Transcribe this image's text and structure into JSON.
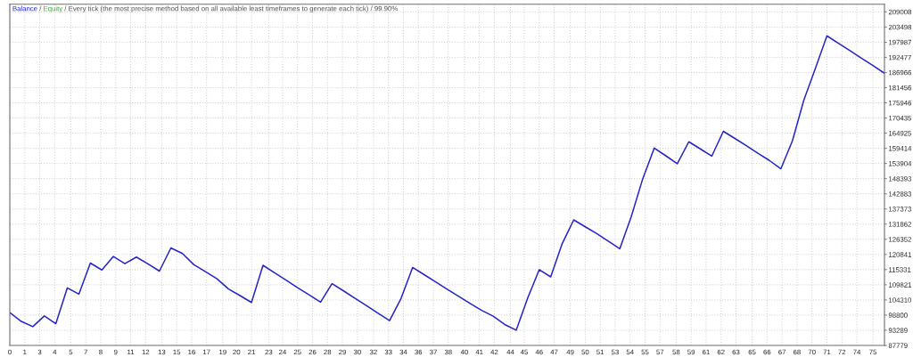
{
  "chart_data": {
    "type": "line",
    "title": "Every tick (the most precise method based on all available least timeframes to generate each tick) / 99.90%",
    "annotations": [
      "/",
      "/"
    ],
    "x": [
      0,
      1,
      2,
      3,
      4,
      5,
      6,
      7,
      8,
      9,
      10,
      11,
      12,
      13,
      14,
      15,
      16,
      17,
      18,
      19,
      20,
      21,
      22,
      23,
      24,
      25,
      26,
      27,
      28,
      29,
      30,
      31,
      32,
      33,
      34,
      35,
      36,
      37,
      38,
      39,
      40,
      41,
      42,
      43,
      44,
      45,
      46,
      47,
      48,
      49,
      50,
      51,
      52,
      53,
      54,
      55,
      56,
      57,
      58,
      59,
      60,
      61,
      62,
      63,
      64,
      65,
      66,
      67,
      68,
      69,
      70,
      71,
      72,
      73,
      74,
      75,
      76
    ],
    "series": [
      {
        "name": "Balance",
        "color": "#2424c8",
        "values": [
          99700,
          96500,
          94600,
          98500,
          95700,
          108700,
          106400,
          117700,
          115200,
          120100,
          117500,
          119900,
          117400,
          114800,
          123200,
          121200,
          117100,
          114600,
          112000,
          108300,
          105900,
          103400,
          116900,
          114200,
          111500,
          108800,
          106200,
          103500,
          110200,
          107600,
          104900,
          102200,
          99500,
          96800,
          104900,
          116100,
          113500,
          110900,
          108200,
          105600,
          103000,
          100500,
          98400,
          95400,
          93300,
          105000,
          115300,
          112700,
          124800,
          133400,
          130900,
          128400,
          125700,
          122900,
          134600,
          148400,
          159500,
          156700,
          153800,
          161800,
          159200,
          156600,
          165600,
          163000,
          160400,
          157600,
          155000,
          152000,
          162100,
          177000,
          188500,
          200300,
          197600,
          194900,
          192200,
          189500,
          186700
        ]
      },
      {
        "name": "Equity",
        "color": "#22b422",
        "values": [
          null,
          null,
          null,
          null,
          null,
          null,
          null,
          null,
          null,
          null,
          null,
          null,
          null,
          null,
          null,
          null,
          null,
          null,
          null,
          null,
          null,
          null,
          null,
          null,
          null,
          null,
          null,
          null,
          null,
          null,
          null,
          null,
          null,
          null,
          null,
          null,
          null,
          null,
          null,
          null,
          null,
          null,
          null,
          null,
          null,
          null,
          null,
          null,
          null,
          null,
          null,
          null,
          null,
          null,
          null,
          null,
          null,
          null,
          null,
          null,
          null,
          null,
          null,
          null,
          null,
          null,
          null,
          null,
          null,
          null,
          null,
          null,
          null,
          null,
          null,
          null,
          null
        ]
      }
    ],
    "xlim": [
      0,
      76
    ],
    "xticks": [
      {
        "value": 0,
        "label": "0"
      },
      {
        "value": 1.3,
        "label": "1"
      },
      {
        "value": 2.6,
        "label": "3"
      },
      {
        "value": 3.9,
        "label": "4"
      },
      {
        "value": 5.3,
        "label": "5"
      },
      {
        "value": 6.6,
        "label": "7"
      },
      {
        "value": 7.9,
        "label": "8"
      },
      {
        "value": 9.2,
        "label": "9"
      },
      {
        "value": 10.5,
        "label": "11"
      },
      {
        "value": 11.8,
        "label": "12"
      },
      {
        "value": 13.2,
        "label": "13"
      },
      {
        "value": 14.5,
        "label": "15"
      },
      {
        "value": 15.8,
        "label": "16"
      },
      {
        "value": 17.1,
        "label": "17"
      },
      {
        "value": 18.5,
        "label": "19"
      },
      {
        "value": 19.7,
        "label": "20"
      },
      {
        "value": 21.0,
        "label": "21"
      },
      {
        "value": 22.5,
        "label": "23"
      },
      {
        "value": 23.7,
        "label": "24"
      },
      {
        "value": 25.0,
        "label": "25"
      },
      {
        "value": 26.3,
        "label": "26"
      },
      {
        "value": 27.6,
        "label": "28"
      },
      {
        "value": 28.9,
        "label": "29"
      },
      {
        "value": 30.2,
        "label": "30"
      },
      {
        "value": 31.6,
        "label": "32"
      },
      {
        "value": 32.9,
        "label": "33"
      },
      {
        "value": 34.2,
        "label": "34"
      },
      {
        "value": 35.5,
        "label": "36"
      },
      {
        "value": 36.8,
        "label": "37"
      },
      {
        "value": 38.1,
        "label": "38"
      },
      {
        "value": 39.5,
        "label": "40"
      },
      {
        "value": 40.8,
        "label": "41"
      },
      {
        "value": 42.1,
        "label": "42"
      },
      {
        "value": 43.5,
        "label": "44"
      },
      {
        "value": 44.7,
        "label": "45"
      },
      {
        "value": 46.0,
        "label": "46"
      },
      {
        "value": 47.3,
        "label": "47"
      },
      {
        "value": 48.7,
        "label": "49"
      },
      {
        "value": 50.0,
        "label": "50"
      },
      {
        "value": 51.3,
        "label": "51"
      },
      {
        "value": 52.6,
        "label": "53"
      },
      {
        "value": 53.9,
        "label": "54"
      },
      {
        "value": 55.2,
        "label": "55"
      },
      {
        "value": 56.5,
        "label": "57"
      },
      {
        "value": 57.9,
        "label": "58"
      },
      {
        "value": 59.2,
        "label": "59"
      },
      {
        "value": 60.5,
        "label": "61"
      },
      {
        "value": 61.8,
        "label": "62"
      },
      {
        "value": 63.1,
        "label": "63"
      },
      {
        "value": 64.5,
        "label": "65"
      },
      {
        "value": 65.8,
        "label": "66"
      },
      {
        "value": 67.1,
        "label": "67"
      },
      {
        "value": 68.4,
        "label": "68"
      },
      {
        "value": 69.7,
        "label": "70"
      },
      {
        "value": 71.0,
        "label": "71"
      },
      {
        "value": 72.3,
        "label": "72"
      },
      {
        "value": 73.6,
        "label": "74"
      },
      {
        "value": 75.0,
        "label": "75"
      }
    ],
    "ylim": [
      87779,
      211800
    ],
    "yticks": [
      87779,
      93289,
      98800,
      104310,
      109821,
      115331,
      120841,
      126352,
      131862,
      137373,
      142883,
      148393,
      153904,
      159414,
      164925,
      170435,
      175946,
      181456,
      186966,
      192477,
      197987,
      203498,
      209008
    ],
    "grid": true,
    "legend": "top left"
  }
}
